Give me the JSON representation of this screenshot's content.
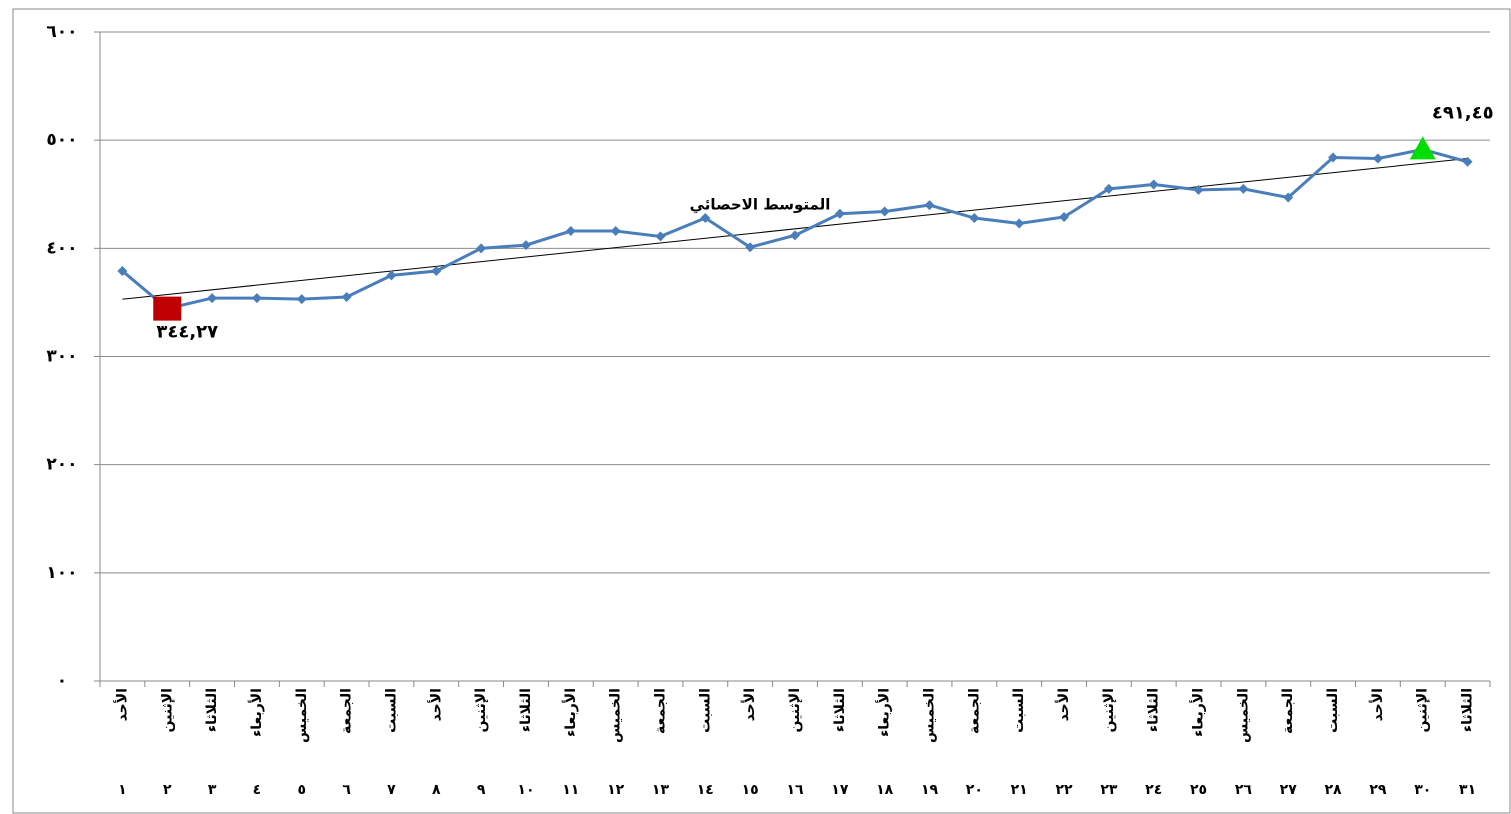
{
  "chart_data": {
    "type": "line",
    "categories": [
      "الأحد",
      "الإثنين",
      "الثلاثاء",
      "الأربعاء",
      "الخميس",
      "الجمعة",
      "السبت",
      "الأحد",
      "الإثنين",
      "الثلاثاء",
      "الأربعاء",
      "الخميس",
      "الجمعة",
      "السبت",
      "الأحد",
      "الإثنين",
      "الثلاثاء",
      "الأربعاء",
      "الخميس",
      "الجمعة",
      "السبت",
      "الأحد",
      "الإثنين",
      "الثلاثاء",
      "الأربعاء",
      "الخميس",
      "الجمعة",
      "السبت",
      "الأحد",
      "الإثنين",
      "الثلاثاء"
    ],
    "category_days": [
      "١",
      "٢",
      "٣",
      "٤",
      "٥",
      "٦",
      "٧",
      "٨",
      "٩",
      "١٠",
      "١١",
      "١٢",
      "١٣",
      "١٤",
      "١٥",
      "١٦",
      "١٧",
      "١٨",
      "١٩",
      "٢٠",
      "٢١",
      "٢٢",
      "٢٣",
      "٢٤",
      "٢٥",
      "٢٦",
      "٢٧",
      "٢٨",
      "٢٩",
      "٣٠",
      "٣١"
    ],
    "values": [
      379,
      344.27,
      354,
      354,
      353,
      355,
      375,
      379,
      400,
      403,
      416,
      416,
      411,
      428,
      401,
      412,
      432,
      434,
      440,
      428,
      423,
      429,
      455,
      459,
      454,
      455,
      447,
      484,
      483,
      491.45,
      480
    ],
    "color": "#4a7ebb",
    "ylim": [
      0,
      600
    ],
    "yticks": [
      {
        "value": 0,
        "label": "٠"
      },
      {
        "value": 100,
        "label": "١٠٠"
      },
      {
        "value": 200,
        "label": "٢٠٠"
      },
      {
        "value": 300,
        "label": "٣٠٠"
      },
      {
        "value": 400,
        "label": "٤٠٠"
      },
      {
        "value": 500,
        "label": "٥٠٠"
      },
      {
        "value": 600,
        "label": "٦٠٠"
      }
    ],
    "grid": true,
    "trendline": {
      "label": "المتوسط الاحصائي",
      "start": 353,
      "end": 483,
      "color": "#000000"
    },
    "min_annotation": {
      "text": "٣٤٤,٢٧",
      "color": "#c00000"
    },
    "max_annotation": {
      "text": "٤٩١,٤٥",
      "color": "#00dd00"
    }
  }
}
